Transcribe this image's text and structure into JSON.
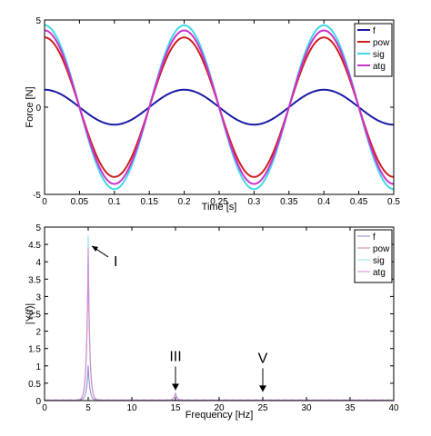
{
  "chart_data": [
    {
      "type": "line",
      "title": "",
      "xlabel": "Time [s]",
      "ylabel": "Force [N]",
      "xlim": [
        0,
        0.5
      ],
      "ylim": [
        -5,
        5
      ],
      "xticks": [
        "0",
        "0.05",
        "0.1",
        "0.15",
        "0.2",
        "0.25",
        "0.3",
        "0.35",
        "0.4",
        "0.45",
        "0.5"
      ],
      "yticks": [
        "-5",
        "0",
        "5"
      ],
      "grid": false,
      "legend_position": "top-right",
      "frequency_hz": 5,
      "series": [
        {
          "name": "f",
          "color": "#1a1aa6",
          "amplitude": 1.0
        },
        {
          "name": "pow",
          "color": "#cc1f1f",
          "amplitude": 4.0
        },
        {
          "name": "sig",
          "color": "#40d8e8",
          "amplitude": 4.7
        },
        {
          "name": "atg",
          "color": "#cc33cc",
          "amplitude": 4.4
        }
      ]
    },
    {
      "type": "line",
      "title": "",
      "xlabel": "Frequency [Hz]",
      "ylabel": "|Y(f)|",
      "xlim": [
        0,
        40
      ],
      "ylim": [
        0,
        5
      ],
      "xticks": [
        "0",
        "5",
        "10",
        "15",
        "20",
        "25",
        "30",
        "35",
        "40"
      ],
      "yticks": [
        "0",
        "0.5",
        "1",
        "1.5",
        "2",
        "2.5",
        "3",
        "3.5",
        "4",
        "4.5",
        "5"
      ],
      "grid": false,
      "legend_position": "top-right",
      "series": [
        {
          "name": "f",
          "color": "#8888cc",
          "peaks": [
            {
              "x": 5,
              "y": 1.0
            }
          ]
        },
        {
          "name": "pow",
          "color": "#cc8888",
          "peaks": [
            {
              "x": 5,
              "y": 4.0
            },
            {
              "x": 15,
              "y": 0.2
            }
          ]
        },
        {
          "name": "sig",
          "color": "#88e0e8",
          "peaks": [
            {
              "x": 5,
              "y": 4.75
            },
            {
              "x": 15,
              "y": 0.22
            }
          ]
        },
        {
          "name": "atg",
          "color": "#d888d8",
          "peaks": [
            {
              "x": 5,
              "y": 4.4
            },
            {
              "x": 15,
              "y": 0.2
            }
          ]
        }
      ],
      "annotations": [
        {
          "text": "I",
          "x": 5,
          "y": 4.4
        },
        {
          "text": "III",
          "x": 15,
          "y": 0.25
        },
        {
          "text": "V",
          "x": 25,
          "y": 0.2
        }
      ]
    }
  ]
}
